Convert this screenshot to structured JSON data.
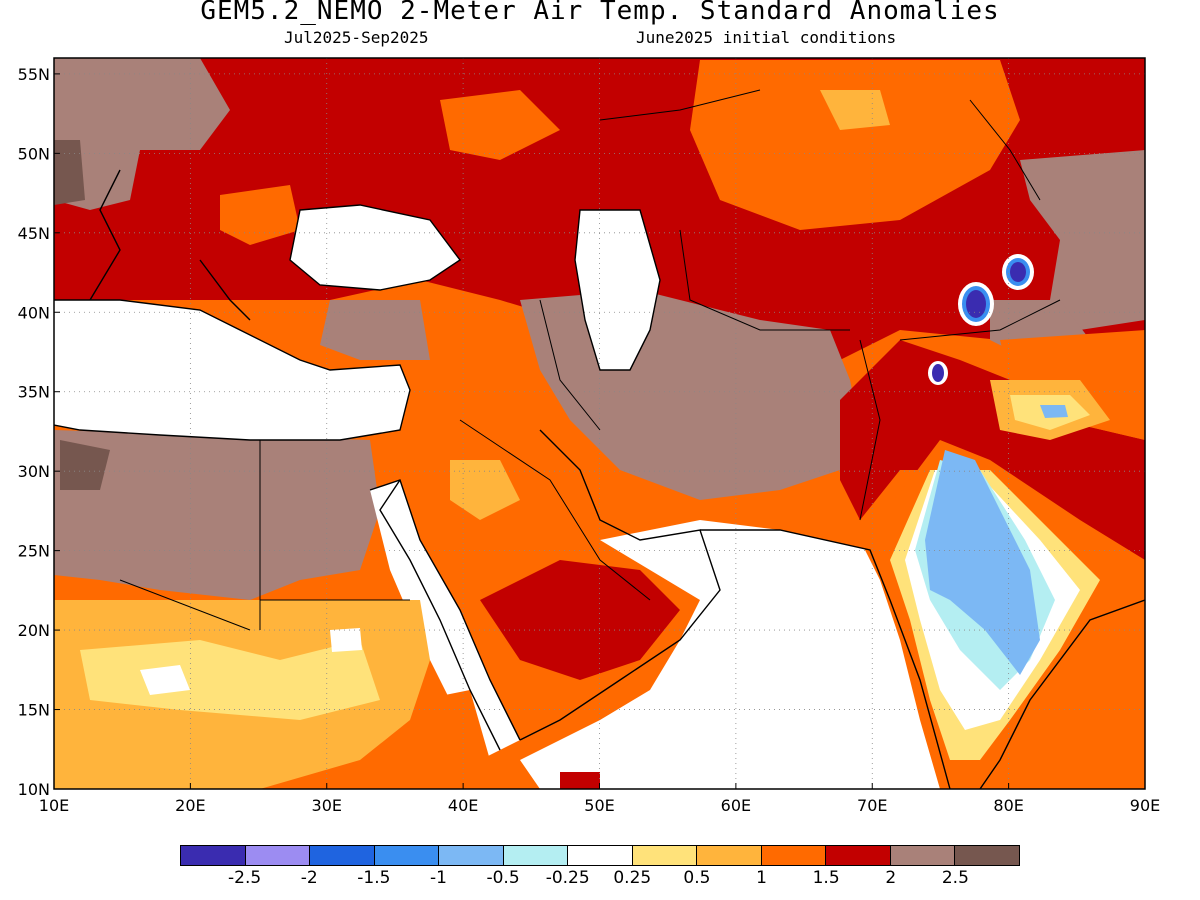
{
  "header": {
    "title": "GEM5.2_NEMO 2-Meter Air Temp. Standard Anomalies",
    "period": "Jul2025-Sep2025",
    "init": "June2025 initial conditions"
  },
  "map": {
    "lon_range": [
      10,
      90
    ],
    "lat_range": [
      10,
      56
    ],
    "x_ticks": [
      "10E",
      "20E",
      "30E",
      "40E",
      "50E",
      "60E",
      "70E",
      "80E",
      "90E"
    ],
    "y_ticks": [
      "10N",
      "15N",
      "20N",
      "25N",
      "30N",
      "35N",
      "40N",
      "45N",
      "50N",
      "55N"
    ],
    "gridlines": "dotted"
  },
  "legend": {
    "colors": [
      "#3a2cb0",
      "#9c8cf2",
      "#1f64e0",
      "#3a8ef0",
      "#7cb8f4",
      "#b4eef2",
      "#ffffff",
      "#ffe27a",
      "#ffb43c",
      "#ff6a00",
      "#c20000",
      "#a98179",
      "#76574f"
    ],
    "labels": [
      "-2.5",
      "-2",
      "-1.5",
      "-1",
      "-0.5",
      "-0.25",
      "0.25",
      "0.5",
      "1",
      "1.5",
      "2",
      "2.5"
    ]
  }
}
